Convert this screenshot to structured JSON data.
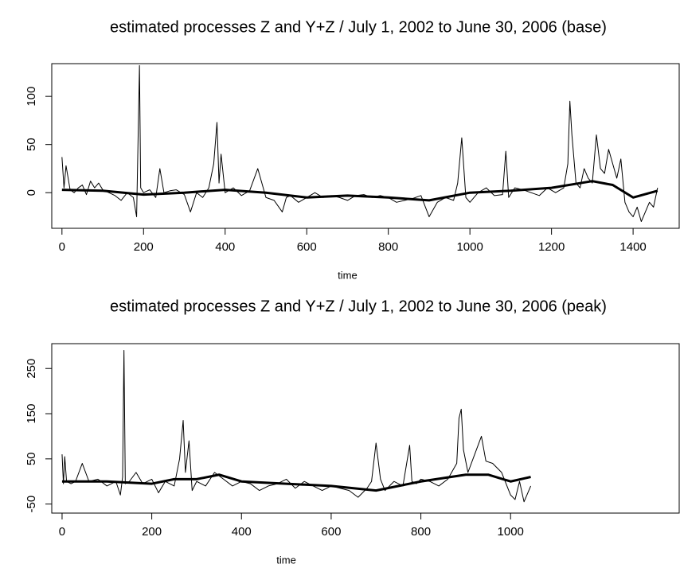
{
  "chart_data": [
    {
      "type": "line",
      "title": "estimated processes Z and Y+Z / July 1, 2002 to June 30, 2006 (base)",
      "x_label": "time",
      "xlim": [
        -25,
        1513
      ],
      "xticks": [
        0,
        200,
        400,
        600,
        800,
        1000,
        1200,
        1400
      ],
      "ylim": [
        -37,
        134
      ],
      "yticks": [
        0,
        50,
        100
      ],
      "series": [
        {
          "color": "#000000",
          "width": 1,
          "x": [
            0,
            5,
            10,
            20,
            30,
            40,
            50,
            60,
            70,
            80,
            90,
            100,
            115,
            130,
            145,
            160,
            175,
            183,
            190,
            193,
            200,
            215,
            230,
            240,
            250,
            265,
            280,
            300,
            315,
            330,
            345,
            360,
            372,
            380,
            385,
            390,
            400,
            420,
            440,
            460,
            480,
            500,
            520,
            540,
            550,
            560,
            580,
            600,
            620,
            640,
            660,
            680,
            700,
            720,
            740,
            760,
            780,
            800,
            820,
            840,
            860,
            880,
            900,
            920,
            940,
            960,
            970,
            980,
            990,
            1000,
            1020,
            1040,
            1060,
            1080,
            1088,
            1095,
            1110,
            1130,
            1150,
            1170,
            1190,
            1210,
            1230,
            1240,
            1245,
            1250,
            1260,
            1270,
            1280,
            1290,
            1300,
            1310,
            1320,
            1330,
            1340,
            1350,
            1360,
            1370,
            1380,
            1390,
            1400,
            1410,
            1420,
            1430,
            1440,
            1450,
            1460
          ],
          "values": [
            37,
            5,
            28,
            3,
            0,
            5,
            8,
            -2,
            12,
            5,
            10,
            3,
            0,
            -3,
            -8,
            0,
            -5,
            -25,
            132,
            5,
            0,
            3,
            -5,
            25,
            0,
            2,
            3,
            -2,
            -20,
            0,
            -5,
            5,
            30,
            73,
            10,
            40,
            0,
            5,
            -3,
            2,
            25,
            -5,
            -8,
            -20,
            -5,
            -3,
            -10,
            -5,
            0,
            -5,
            -3,
            -5,
            -8,
            -3,
            -2,
            -5,
            -3,
            -5,
            -10,
            -8,
            -6,
            -3,
            -25,
            -10,
            -5,
            -8,
            10,
            57,
            -5,
            -10,
            0,
            5,
            -3,
            -2,
            43,
            -5,
            5,
            3,
            0,
            -3,
            5,
            0,
            5,
            30,
            95,
            60,
            10,
            5,
            25,
            15,
            10,
            60,
            25,
            20,
            45,
            30,
            15,
            35,
            -10,
            -20,
            -25,
            -15,
            -30,
            -20,
            -10,
            -15,
            5
          ]
        },
        {
          "color": "#000000",
          "width": 3,
          "x": [
            0,
            100,
            200,
            300,
            400,
            500,
            600,
            700,
            800,
            900,
            1000,
            1100,
            1200,
            1300,
            1350,
            1400,
            1460
          ],
          "values": [
            3,
            2,
            -2,
            0,
            3,
            0,
            -5,
            -3,
            -5,
            -8,
            0,
            2,
            5,
            12,
            8,
            -5,
            2
          ]
        }
      ]
    },
    {
      "type": "line",
      "title": "estimated processes Z and Y+Z / July 1, 2002 to June 30, 2006 (peak)",
      "x_label": "time",
      "xlim": [
        -23,
        1376
      ],
      "xticks": [
        0,
        200,
        400,
        600,
        800,
        1000
      ],
      "ylim": [
        -70,
        305
      ],
      "yticks": [
        -50,
        50,
        150,
        250
      ],
      "series": [
        {
          "color": "#000000",
          "width": 1,
          "x": [
            0,
            3,
            6,
            10,
            20,
            30,
            45,
            60,
            80,
            100,
            120,
            130,
            135,
            138,
            141,
            150,
            165,
            180,
            200,
            215,
            230,
            250,
            262,
            270,
            275,
            283,
            290,
            300,
            320,
            340,
            360,
            380,
            400,
            420,
            440,
            460,
            480,
            500,
            520,
            540,
            560,
            580,
            600,
            620,
            640,
            660,
            680,
            690,
            700,
            710,
            720,
            740,
            760,
            775,
            780,
            790,
            800,
            820,
            840,
            860,
            880,
            885,
            890,
            895,
            905,
            920,
            935,
            945,
            960,
            980,
            1000,
            1010,
            1020,
            1030,
            1045
          ],
          "values": [
            60,
            -5,
            55,
            0,
            -5,
            0,
            40,
            0,
            5,
            -10,
            0,
            -30,
            10,
            290,
            -5,
            0,
            20,
            -5,
            5,
            -25,
            0,
            -10,
            50,
            135,
            20,
            90,
            -20,
            0,
            -10,
            20,
            5,
            -10,
            0,
            -5,
            -20,
            -10,
            -5,
            5,
            -15,
            0,
            -10,
            -20,
            -10,
            -15,
            -20,
            -35,
            -15,
            0,
            85,
            5,
            -20,
            0,
            -10,
            80,
            0,
            -5,
            5,
            0,
            -10,
            5,
            40,
            140,
            160,
            70,
            20,
            60,
            100,
            45,
            40,
            20,
            -30,
            -40,
            0,
            -45,
            -10
          ]
        },
        {
          "color": "#000000",
          "width": 3,
          "x": [
            0,
            100,
            200,
            250,
            300,
            350,
            400,
            500,
            600,
            700,
            800,
            900,
            950,
            1000,
            1045
          ],
          "values": [
            0,
            0,
            -5,
            5,
            5,
            15,
            0,
            -5,
            -10,
            -20,
            0,
            15,
            15,
            0,
            10
          ]
        }
      ]
    }
  ]
}
